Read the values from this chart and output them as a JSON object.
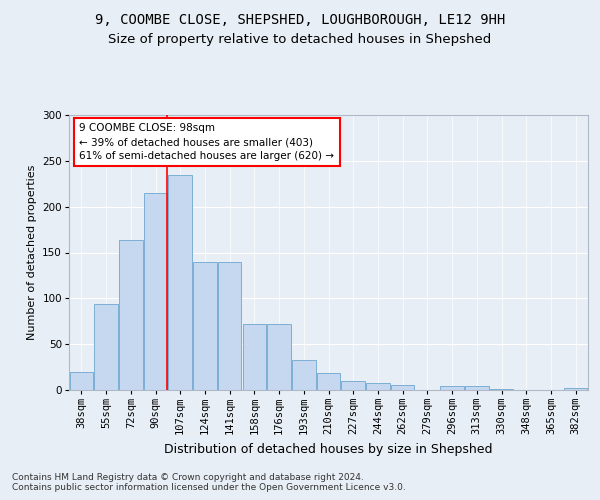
{
  "title1": "9, COOMBE CLOSE, SHEPSHED, LOUGHBOROUGH, LE12 9HH",
  "title2": "Size of property relative to detached houses in Shepshed",
  "xlabel": "Distribution of detached houses by size in Shepshed",
  "ylabel": "Number of detached properties",
  "categories": [
    "38sqm",
    "55sqm",
    "72sqm",
    "90sqm",
    "107sqm",
    "124sqm",
    "141sqm",
    "158sqm",
    "176sqm",
    "193sqm",
    "210sqm",
    "227sqm",
    "244sqm",
    "262sqm",
    "279sqm",
    "296sqm",
    "313sqm",
    "330sqm",
    "348sqm",
    "365sqm",
    "382sqm"
  ],
  "values": [
    20,
    94,
    164,
    215,
    235,
    140,
    140,
    72,
    72,
    33,
    19,
    10,
    8,
    5,
    0,
    4,
    4,
    1,
    0,
    0,
    2
  ],
  "bar_color": "#c5d8f0",
  "bar_edge_color": "#7bafd4",
  "annotation_text": "9 COOMBE CLOSE: 98sqm\n← 39% of detached houses are smaller (403)\n61% of semi-detached houses are larger (620) →",
  "annotation_box_color": "white",
  "annotation_box_edge_color": "red",
  "vline_color": "red",
  "ylim": [
    0,
    300
  ],
  "yticks": [
    0,
    50,
    100,
    150,
    200,
    250,
    300
  ],
  "background_color": "#e8eef5",
  "footer_text": "Contains HM Land Registry data © Crown copyright and database right 2024.\nContains public sector information licensed under the Open Government Licence v3.0.",
  "title1_fontsize": 10,
  "title2_fontsize": 9.5,
  "xlabel_fontsize": 9,
  "ylabel_fontsize": 8,
  "tick_fontsize": 7.5,
  "footer_fontsize": 6.5
}
